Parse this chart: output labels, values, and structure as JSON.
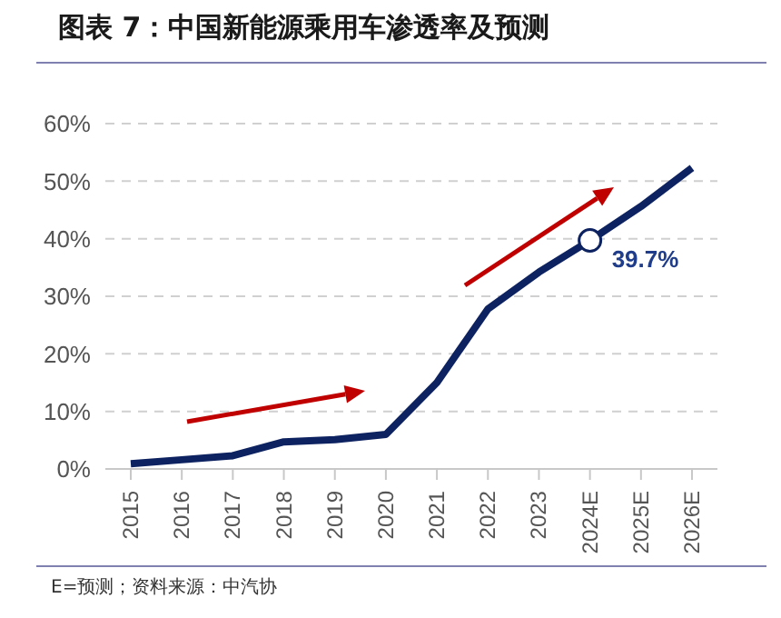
{
  "chart_data": {
    "type": "line",
    "title": "图表 7：中国新能源乘用车渗透率及预测",
    "categories": [
      "2015",
      "2016",
      "2017",
      "2018",
      "2019",
      "2020",
      "2021",
      "2022",
      "2023",
      "2024E",
      "2025E",
      "2026E"
    ],
    "series": [
      {
        "color": "#0d2260",
        "values": [
          0.9,
          1.6,
          2.3,
          4.7,
          5.1,
          6.0,
          15,
          27.8,
          34.2,
          39.7,
          45.6,
          52.3
        ]
      }
    ],
    "ylim": [
      0,
      60
    ],
    "yticks": [
      {
        "value": 0,
        "label": "0%"
      },
      {
        "value": 10,
        "label": "10%"
      },
      {
        "value": 20,
        "label": "20%"
      },
      {
        "value": 30,
        "label": "30%"
      },
      {
        "value": 40,
        "label": "40%"
      },
      {
        "value": 50,
        "label": "50%"
      },
      {
        "value": 60,
        "label": "60%"
      }
    ],
    "grid": "y",
    "marker": "none",
    "line_style": "solid",
    "annotations": [
      {
        "text": "39.7%",
        "x": "2024E",
        "y": 39.7
      },
      "E=预测；资料来源：中汽协"
    ]
  }
}
